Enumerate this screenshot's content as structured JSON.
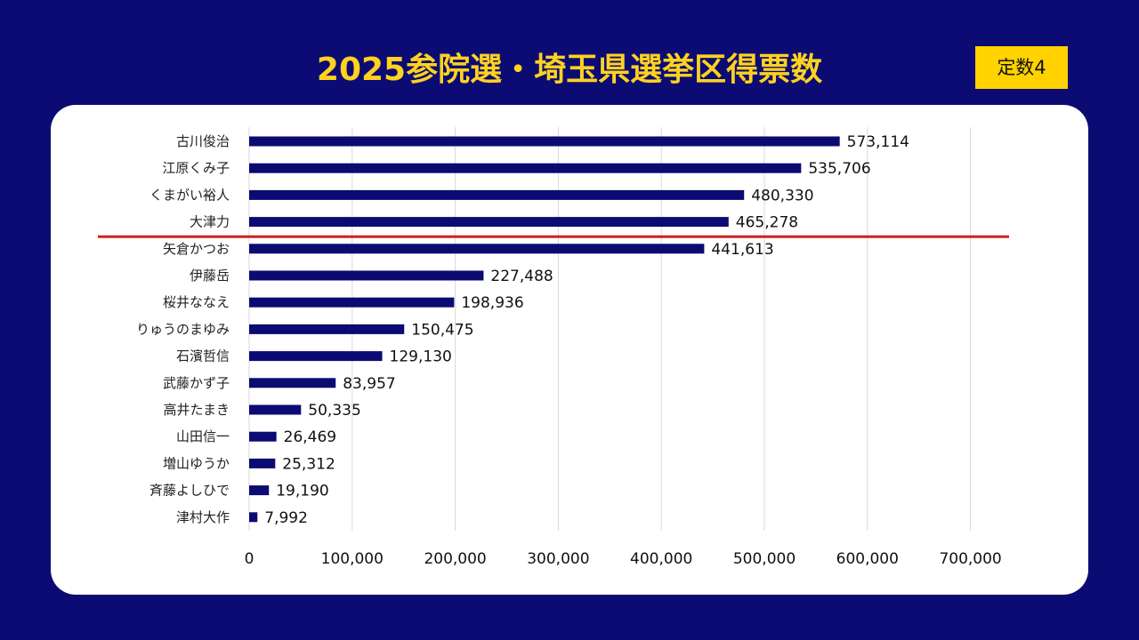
{
  "badge": "定数4",
  "chart_data": {
    "type": "bar",
    "orientation": "horizontal",
    "title": "2025参院選・埼玉県選挙区得票数",
    "categories": [
      "古川俊治",
      "江原くみ子",
      "くまがい裕人",
      "大津力",
      "矢倉かつお",
      "伊藤岳",
      "桜井ななえ",
      "りゅうのまゆみ",
      "石濱哲信",
      "武藤かず子",
      "高井たまき",
      "山田信一",
      "増山ゆうか",
      "斉藤よしひで",
      "津村大作"
    ],
    "values": [
      573114,
      535706,
      480330,
      465278,
      441613,
      227488,
      198936,
      150475,
      129130,
      83957,
      50335,
      26469,
      25312,
      19190,
      7992
    ],
    "value_labels": [
      "573,114",
      "535,706",
      "480,330",
      "465,278",
      "441,613",
      "227,488",
      "198,936",
      "150,475",
      "129,130",
      "83,957",
      "50,335",
      "26,469",
      "25,312",
      "19,190",
      "7,992"
    ],
    "xlim": [
      0,
      700000
    ],
    "xticks": [
      0,
      100000,
      200000,
      300000,
      400000,
      500000,
      600000,
      700000
    ],
    "xtick_labels": [
      "0",
      "100,000",
      "200,000",
      "300,000",
      "400,000",
      "500,000",
      "600,000",
      "700,000"
    ],
    "bar_color": "#0b0b73",
    "grid": true,
    "cutoff_line_after_rank": 4,
    "cutoff_line_color": "#d42020"
  }
}
